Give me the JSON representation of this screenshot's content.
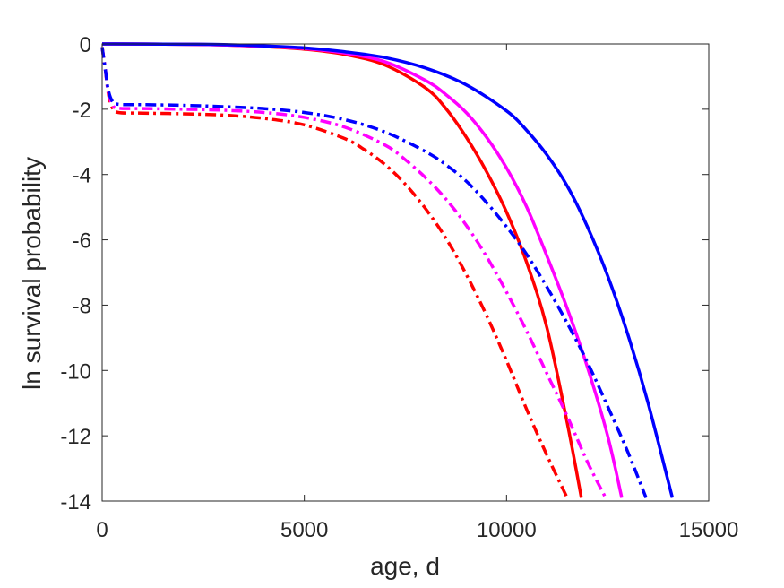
{
  "chart_data": {
    "type": "line",
    "title": "",
    "xlabel": "age, d",
    "ylabel": "ln survival probability",
    "xlim": [
      0,
      15000
    ],
    "ylim": [
      -14,
      0
    ],
    "xticks": [
      0,
      5000,
      10000,
      15000
    ],
    "yticks": [
      0,
      -2,
      -4,
      -6,
      -8,
      -10,
      -12,
      -14
    ],
    "xtick_labels": [
      "0",
      "5000",
      "10000",
      "15000"
    ],
    "ytick_labels": [
      "0",
      "-2",
      "-4",
      "-6",
      "-8",
      "-10",
      "-12",
      "-14"
    ],
    "grid": false,
    "legend": "none",
    "series": [
      {
        "color": "#ff0000",
        "style": "solid",
        "x": [
          0,
          2000,
          3000,
          4000,
          5000,
          6000,
          7000,
          8000,
          8500,
          9000,
          9500,
          10000,
          10500,
          11000,
          11500,
          11850
        ],
        "y": [
          0,
          -0.01,
          -0.03,
          -0.08,
          -0.16,
          -0.32,
          -0.65,
          -1.35,
          -1.98,
          -2.85,
          -3.9,
          -5.15,
          -6.7,
          -8.7,
          -11.6,
          -13.9
        ]
      },
      {
        "color": "#ff00ff",
        "style": "solid",
        "x": [
          0,
          2000,
          3000,
          4000,
          5000,
          6000,
          7000,
          8000,
          8500,
          9000,
          9500,
          10000,
          10500,
          11000,
          11500,
          12000,
          12500,
          12850
        ],
        "y": [
          0,
          -0.01,
          -0.03,
          -0.07,
          -0.14,
          -0.28,
          -0.55,
          -1.12,
          -1.55,
          -2.1,
          -2.85,
          -3.8,
          -5.0,
          -6.5,
          -8.1,
          -9.9,
          -12.0,
          -13.9
        ]
      },
      {
        "color": "#0000ff",
        "style": "solid",
        "x": [
          0,
          2000,
          3000,
          4000,
          5000,
          6000,
          7000,
          8000,
          9000,
          10000,
          10500,
          11000,
          11500,
          12000,
          12500,
          13000,
          13500,
          14100
        ],
        "y": [
          0,
          -0.01,
          -0.02,
          -0.06,
          -0.12,
          -0.24,
          -0.42,
          -0.74,
          -1.25,
          -2.05,
          -2.65,
          -3.4,
          -4.35,
          -5.6,
          -7.1,
          -8.9,
          -11.0,
          -13.9
        ]
      },
      {
        "color": "#ff0000",
        "style": "dashdot",
        "x": [
          0,
          80,
          150,
          250,
          400,
          1000,
          2000,
          3000,
          4000,
          5000,
          6000,
          6500,
          7000,
          7500,
          8000,
          8500,
          9000,
          9500,
          10000,
          10500,
          11000,
          11500
        ],
        "y": [
          -0.1,
          -0.8,
          -1.5,
          -1.95,
          -2.1,
          -2.12,
          -2.14,
          -2.18,
          -2.28,
          -2.48,
          -2.9,
          -3.25,
          -3.7,
          -4.3,
          -5.05,
          -5.95,
          -7.05,
          -8.3,
          -9.7,
          -11.2,
          -12.6,
          -13.9
        ]
      },
      {
        "color": "#ff00ff",
        "style": "dashdot",
        "x": [
          0,
          80,
          150,
          250,
          400,
          1000,
          2000,
          3000,
          4000,
          5000,
          6000,
          7000,
          7500,
          8000,
          8500,
          9000,
          9500,
          10000,
          10500,
          11000,
          11500,
          12000,
          12450
        ],
        "y": [
          -0.1,
          -0.8,
          -1.45,
          -1.85,
          -1.97,
          -1.98,
          -2.0,
          -2.03,
          -2.1,
          -2.25,
          -2.55,
          -3.1,
          -3.55,
          -4.1,
          -4.75,
          -5.55,
          -6.5,
          -7.6,
          -8.8,
          -10.1,
          -11.4,
          -12.8,
          -13.9
        ]
      },
      {
        "color": "#0000ff",
        "style": "dashdot",
        "x": [
          0,
          80,
          150,
          250,
          400,
          1000,
          2000,
          3000,
          4000,
          5000,
          6000,
          7000,
          8000,
          8500,
          9000,
          9500,
          10000,
          10500,
          11000,
          11500,
          12000,
          12500,
          13000,
          13450
        ],
        "y": [
          -0.1,
          -0.8,
          -1.4,
          -1.75,
          -1.85,
          -1.86,
          -1.88,
          -1.92,
          -1.98,
          -2.1,
          -2.32,
          -2.7,
          -3.3,
          -3.7,
          -4.2,
          -4.85,
          -5.6,
          -6.45,
          -7.45,
          -8.55,
          -9.75,
          -11.1,
          -12.5,
          -13.9
        ]
      }
    ]
  }
}
